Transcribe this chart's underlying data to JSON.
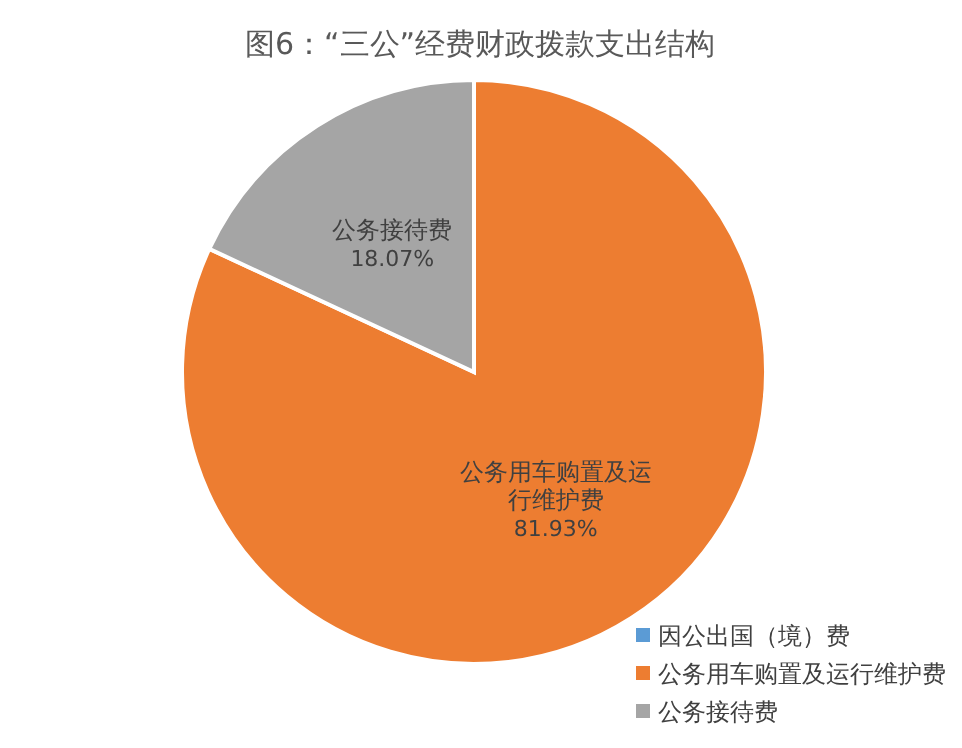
{
  "chart_data": {
    "type": "pie",
    "title": "图6：“三公”经费财政拨款支出结构",
    "categories": [
      "因公出国（境）费",
      "公务用车购置及运行维护费",
      "公务接待费"
    ],
    "values": [
      0,
      81.93,
      18.07
    ],
    "colors": [
      "#5b9bd5",
      "#ed7d31",
      "#a5a5a5"
    ],
    "value_labels": [
      null,
      "公务用车购置及运行维护费\n81.93%",
      "公务接待费\n18.07%"
    ],
    "legend": "bottom right"
  }
}
